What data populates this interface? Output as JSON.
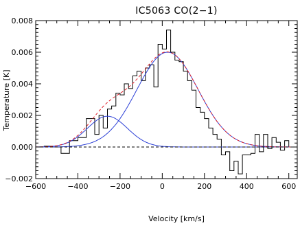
{
  "chart_data": {
    "type": "line",
    "title": "IC5063 CO(2−1)",
    "xlabel": "Velocity [km/s]",
    "ylabel": "Temperature [K]",
    "xlim": [
      -600,
      640
    ],
    "ylim": [
      -0.002,
      0.008
    ],
    "xticks": [
      -600,
      -400,
      -200,
      0,
      200,
      400,
      600
    ],
    "xtick_labels": [
      "−600",
      "−400",
      "−200",
      "0",
      "200",
      "400",
      "600"
    ],
    "yticks": [
      -0.002,
      0.0,
      0.002,
      0.004,
      0.006,
      0.008
    ],
    "ytick_labels": [
      "−0.002",
      "0.000",
      "0.002",
      "0.004",
      "0.006",
      "0.008"
    ],
    "grid": false,
    "series": [
      {
        "kind": "step",
        "color": "#000000",
        "edges": [
          -640,
          -600,
          -560,
          -520,
          -480,
          -440,
          -400,
          -360,
          -320,
          -300,
          -280,
          -260,
          -240,
          -220,
          -200,
          -180,
          -160,
          -140,
          -120,
          -100,
          -80,
          -60,
          -40,
          -20,
          0,
          20,
          40,
          60,
          80,
          100,
          120,
          140,
          160,
          180,
          200,
          220,
          240,
          260,
          280,
          300,
          320,
          340,
          360,
          380,
          400,
          420,
          440,
          460,
          480,
          500,
          520,
          540,
          560,
          580,
          600,
          640
        ],
        "values": [
          5e-05,
          0.0,
          5e-05,
          0.0,
          -0.0004,
          0.0004,
          0.0006,
          0.0018,
          0.0008,
          0.002,
          0.0012,
          0.0024,
          0.0026,
          0.0034,
          0.0033,
          0.004,
          0.0037,
          0.0045,
          0.0048,
          0.0042,
          0.005,
          0.0052,
          0.0038,
          0.0065,
          0.0062,
          0.0074,
          0.006,
          0.0055,
          0.0054,
          0.0048,
          0.0042,
          0.0036,
          0.0025,
          0.0022,
          0.0018,
          0.0012,
          0.0008,
          0.0005,
          -0.0005,
          -0.0003,
          -0.0015,
          -0.0009,
          -0.0017,
          -0.0005,
          -0.0005,
          -0.0004,
          0.0008,
          -0.0003,
          0.0008,
          -0.0001,
          0.0006,
          0.0003,
          -0.0002,
          0.0004,
          0.0
        ]
      },
      {
        "kind": "gaussian",
        "color": "#2b3fd6",
        "amplitude": 0.00195,
        "center": -260,
        "sigma": 95
      },
      {
        "kind": "gaussian",
        "color": "#2b3fd6",
        "amplitude": 0.006,
        "center": 25,
        "sigma": 145
      },
      {
        "kind": "gaussian-sum",
        "color": "#e0202a",
        "dashed": true
      },
      {
        "kind": "baseline",
        "color": "#000000",
        "dashed": true,
        "y": 0.0
      }
    ]
  }
}
